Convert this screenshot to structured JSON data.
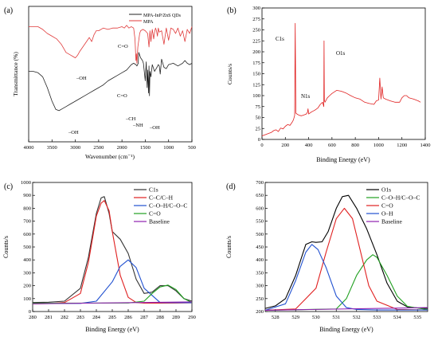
{
  "chart_data": [
    {
      "panel_label": "(a)",
      "type": "line",
      "title": "",
      "xlabel": "Wavenumber (cm⁻¹)",
      "ylabel": "Transmittance (%)",
      "xlim": [
        4000,
        500
      ],
      "x_ticks": [
        "4000",
        "3500",
        "3000",
        "2500",
        "2000",
        "1500",
        "1000",
        "500"
      ],
      "y_ticks": [],
      "legend_position": "top-right",
      "series": [
        {
          "name": "MPA-InP/ZnS QDs",
          "color": "#222222",
          "x": [
            4000,
            3900,
            3800,
            3700,
            3600,
            3500,
            3420,
            3350,
            3300,
            3200,
            3100,
            3000,
            2900,
            2800,
            2700,
            2600,
            2500,
            2400,
            2300,
            2200,
            2100,
            2000,
            1900,
            1800,
            1750,
            1700,
            1680,
            1650,
            1640,
            1600,
            1560,
            1540,
            1500,
            1480,
            1460,
            1450,
            1430,
            1420,
            1410,
            1400,
            1380,
            1350,
            1300,
            1250,
            1220,
            1200,
            1180,
            1150,
            1100,
            1050,
            1000,
            900,
            800,
            700,
            650,
            600,
            550,
            500
          ],
          "y": [
            52,
            52,
            51,
            48,
            40,
            30,
            24,
            23,
            24,
            26,
            28,
            30,
            32,
            34,
            36,
            38,
            40,
            42,
            45,
            47,
            49,
            51,
            53,
            57,
            58,
            57,
            56,
            58,
            66,
            62,
            60,
            58,
            45,
            59,
            40,
            53,
            36,
            56,
            34,
            52,
            48,
            57,
            52,
            55,
            57,
            56,
            50,
            61,
            55,
            54,
            57,
            58,
            56,
            58,
            60,
            58,
            57,
            58
          ]
        },
        {
          "name": "MPA",
          "color": "#e03a3a",
          "x": [
            4000,
            3900,
            3800,
            3700,
            3600,
            3500,
            3400,
            3300,
            3200,
            3100,
            3050,
            3000,
            2950,
            2900,
            2800,
            2700,
            2650,
            2600,
            2550,
            2500,
            2400,
            2300,
            2200,
            2100,
            2000,
            1950,
            1900,
            1850,
            1800,
            1750,
            1720,
            1700,
            1690,
            1680,
            1660,
            1620,
            1600,
            1550,
            1500,
            1450,
            1420,
            1400,
            1380,
            1350,
            1320,
            1300,
            1280,
            1260,
            1240,
            1220,
            1200,
            1150,
            1100,
            1050,
            1000,
            950,
            900,
            850,
            800,
            750,
            700,
            650,
            600,
            550,
            500
          ],
          "y": [
            85,
            85,
            85,
            83,
            80,
            78,
            76,
            72,
            66,
            64,
            63,
            62,
            64,
            67,
            72,
            77,
            74,
            79,
            82,
            82,
            84,
            83,
            84,
            84,
            85,
            84,
            86,
            84,
            85,
            84,
            76,
            60,
            65,
            58,
            70,
            80,
            82,
            83,
            82,
            80,
            70,
            82,
            74,
            83,
            76,
            81,
            84,
            82,
            78,
            84,
            81,
            82,
            72,
            84,
            75,
            84,
            83,
            80,
            84,
            78,
            82,
            74,
            83,
            80,
            85
          ]
        }
      ],
      "annotations": [
        "–OH",
        "C=O",
        "C=O",
        "–CH",
        "–NH",
        "–OH",
        "–OH"
      ]
    },
    {
      "panel_label": "(b)",
      "type": "line",
      "title": "",
      "xlabel": "Binding Energy (eV)",
      "ylabel": "Counts/s",
      "xlim": [
        0,
        1400
      ],
      "ylim": [
        0,
        300
      ],
      "x_ticks": [
        "0",
        "200",
        "400",
        "600",
        "800",
        "1000",
        "1200",
        "1400"
      ],
      "y_ticks": [
        "0",
        "25",
        "50",
        "75",
        "100",
        "125",
        "150",
        "175",
        "200",
        "225",
        "250",
        "275",
        "300"
      ],
      "series": [
        {
          "name": "",
          "color": "#e02020",
          "x": [
            0,
            20,
            40,
            60,
            80,
            100,
            120,
            140,
            160,
            180,
            200,
            220,
            240,
            260,
            270,
            280,
            285,
            290,
            300,
            320,
            340,
            360,
            380,
            390,
            395,
            400,
            420,
            440,
            460,
            480,
            500,
            520,
            530,
            532,
            535,
            540,
            560,
            580,
            600,
            640,
            680,
            700,
            720,
            760,
            800,
            840,
            880,
            920,
            960,
            980,
            1000,
            1010,
            1020,
            1030,
            1040,
            1060,
            1100,
            1140,
            1180,
            1200,
            1220,
            1240,
            1260,
            1300,
            1340,
            1360
          ],
          "y": [
            8,
            10,
            12,
            14,
            16,
            20,
            22,
            18,
            26,
            24,
            30,
            34,
            32,
            40,
            45,
            55,
            265,
            60,
            58,
            55,
            54,
            56,
            58,
            62,
            70,
            58,
            62,
            65,
            68,
            72,
            80,
            85,
            75,
            225,
            90,
            85,
            95,
            100,
            105,
            112,
            110,
            108,
            106,
            100,
            95,
            92,
            85,
            82,
            80,
            88,
            90,
            140,
            92,
            120,
            95,
            92,
            88,
            85,
            85,
            95,
            100,
            100,
            95,
            92,
            88,
            85
          ]
        }
      ],
      "annotations": [
        "C1s",
        "N1s",
        "O1s"
      ]
    },
    {
      "panel_label": "(c)",
      "type": "line",
      "title": "",
      "xlabel": "Binding Energy (eV)",
      "ylabel": "Counts/s",
      "xlim": [
        280,
        290
      ],
      "ylim": [
        0,
        1000
      ],
      "x_ticks": [
        "280",
        "281",
        "282",
        "283",
        "284",
        "285",
        "286",
        "287",
        "288",
        "289",
        "290"
      ],
      "y_ticks": [
        "0",
        "100",
        "200",
        "300",
        "400",
        "500",
        "600",
        "700",
        "800",
        "900",
        "1000"
      ],
      "legend_position": "top-right",
      "series": [
        {
          "name": "C1s",
          "color": "#333333",
          "x": [
            280,
            281,
            282,
            283,
            283.5,
            284,
            284.3,
            284.5,
            284.8,
            285,
            285.5,
            286,
            286.5,
            287,
            287.5,
            288,
            288.5,
            289,
            289.5,
            290
          ],
          "y": [
            70,
            72,
            80,
            180,
            420,
            760,
            880,
            890,
            760,
            620,
            560,
            450,
            250,
            140,
            150,
            200,
            200,
            160,
            100,
            80
          ]
        },
        {
          "name": "C–C/C–H",
          "color": "#e02020",
          "x": [
            280,
            281,
            282,
            283,
            283.5,
            284,
            284.3,
            284.5,
            284.8,
            285,
            285.5,
            286,
            286.5,
            287,
            288,
            289,
            290
          ],
          "y": [
            60,
            62,
            70,
            140,
            380,
            740,
            840,
            860,
            780,
            620,
            280,
            110,
            70,
            65,
            65,
            66,
            67
          ]
        },
        {
          "name": "C–O–H/C–O–C",
          "color": "#2050d0",
          "x": [
            280,
            283,
            284,
            285,
            285.5,
            286,
            286.5,
            287,
            288,
            290
          ],
          "y": [
            62,
            63,
            80,
            230,
            350,
            400,
            340,
            180,
            70,
            68
          ]
        },
        {
          "name": "C=O",
          "color": "#20a020",
          "x": [
            280,
            286,
            287,
            287.5,
            288,
            288.5,
            289,
            289.5,
            290
          ],
          "y": [
            64,
            66,
            80,
            140,
            190,
            205,
            170,
            100,
            70
          ]
        },
        {
          "name": "Baseline",
          "color": "#9020b0",
          "x": [
            280,
            290
          ],
          "y": [
            60,
            75
          ]
        }
      ]
    },
    {
      "panel_label": "(d)",
      "type": "line",
      "title": "",
      "xlabel": "Binding Energy (eV)",
      "ylabel": "Counts/s",
      "xlim": [
        527.5,
        535.5
      ],
      "ylim": [
        200,
        700
      ],
      "x_ticks": [
        "528",
        "529",
        "530",
        "531",
        "532",
        "533",
        "534",
        "535"
      ],
      "y_ticks": [
        "200",
        "250",
        "300",
        "350",
        "400",
        "450",
        "500",
        "550",
        "600",
        "650",
        "700"
      ],
      "legend_position": "top-right",
      "series": [
        {
          "name": "O1s",
          "color": "#000000",
          "x": [
            527.5,
            528,
            528.5,
            529,
            529.5,
            529.8,
            530,
            530.3,
            530.6,
            531,
            531.3,
            531.6,
            532,
            532.5,
            533,
            533.5,
            534,
            534.5,
            535,
            535.5
          ],
          "y": [
            212,
            222,
            250,
            340,
            460,
            470,
            468,
            470,
            510,
            600,
            645,
            650,
            600,
            520,
            420,
            310,
            240,
            218,
            214,
            212
          ]
        },
        {
          "name": "C–O–H/C–O–C",
          "color": "#20a020",
          "x": [
            527.5,
            531,
            531.5,
            532,
            532.5,
            532.8,
            533,
            533.5,
            534,
            534.5,
            535.5
          ],
          "y": [
            205,
            210,
            250,
            340,
            400,
            420,
            410,
            340,
            260,
            220,
            207
          ]
        },
        {
          "name": "C=O",
          "color": "#e02020",
          "x": [
            527.5,
            529,
            530,
            530.5,
            531,
            531.4,
            531.8,
            532.2,
            532.6,
            533,
            534,
            535.5
          ],
          "y": [
            205,
            210,
            290,
            430,
            560,
            600,
            560,
            430,
            300,
            240,
            208,
            206
          ]
        },
        {
          "name": "O–H",
          "color": "#2050d0",
          "x": [
            527.5,
            528.5,
            529,
            529.5,
            529.8,
            530.1,
            530.5,
            531,
            531.5,
            532,
            533,
            535.5
          ],
          "y": [
            205,
            230,
            320,
            430,
            460,
            440,
            370,
            260,
            215,
            208,
            206,
            206
          ]
        },
        {
          "name": "Baseline",
          "color": "#9020b0",
          "x": [
            527.5,
            535.5
          ],
          "y": [
            205,
            215
          ]
        }
      ]
    }
  ]
}
